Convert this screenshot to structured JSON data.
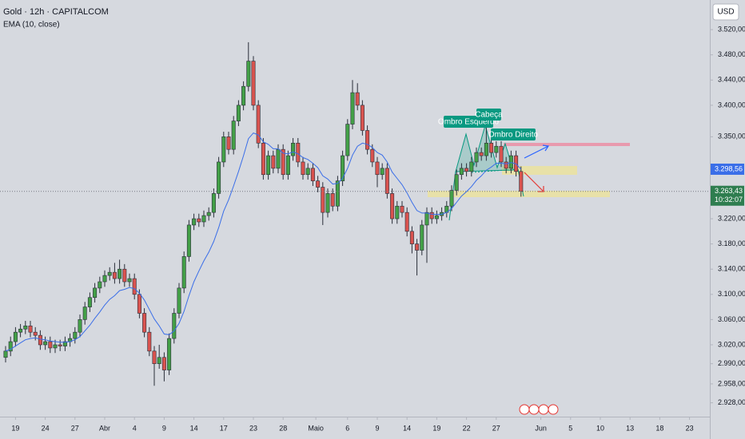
{
  "chart_data": {
    "type": "candlestick",
    "title": "Gold · 12h · CAPITALCOM",
    "currency": "USD",
    "up_color": "#43a047",
    "down_color": "#d9534f",
    "open": [
      3000,
      3010,
      3025,
      3040,
      3045,
      3050,
      3040,
      3035,
      3020,
      3025,
      3015,
      3020,
      3018,
      3025,
      3030,
      3040,
      3060,
      3080,
      3095,
      3110,
      3120,
      3130,
      3135,
      3125,
      3140,
      3120,
      3125,
      3100,
      3070,
      3040,
      3010,
      2990,
      3000,
      2980,
      3030,
      3070,
      3110,
      3160,
      3210,
      3220,
      3215,
      3225,
      3230,
      3260,
      3310,
      3350,
      3330,
      3375,
      3400,
      3430,
      3470,
      3400,
      3340,
      3290,
      3320,
      3300,
      3330,
      3290,
      3320,
      3340,
      3310,
      3290,
      3300,
      3280,
      3270,
      3230,
      3260,
      3240,
      3280,
      3320,
      3370,
      3420,
      3400,
      3360,
      3330,
      3310,
      3290,
      3300,
      3260,
      3220,
      3240,
      3230,
      3200,
      3180,
      3170,
      3210,
      3230,
      3220,
      3225,
      3230,
      3240,
      3265,
      3290,
      3300,
      3295,
      3310,
      3325,
      3320,
      3340,
      3325,
      3335,
      3310,
      3300,
      3320,
      3295
    ],
    "high": [
      3018,
      3033,
      3048,
      3053,
      3058,
      3058,
      3048,
      3043,
      3033,
      3033,
      3028,
      3028,
      3033,
      3038,
      3048,
      3068,
      3088,
      3103,
      3118,
      3128,
      3138,
      3143,
      3150,
      3155,
      3148,
      3133,
      3133,
      3108,
      3078,
      3048,
      3018,
      3020,
      3008,
      3038,
      3078,
      3118,
      3168,
      3218,
      3228,
      3228,
      3233,
      3238,
      3268,
      3318,
      3358,
      3358,
      3383,
      3408,
      3438,
      3500,
      3478,
      3408,
      3348,
      3328,
      3328,
      3338,
      3338,
      3328,
      3348,
      3348,
      3318,
      3308,
      3308,
      3288,
      3278,
      3268,
      3268,
      3288,
      3328,
      3378,
      3440,
      3435,
      3408,
      3368,
      3338,
      3318,
      3308,
      3308,
      3268,
      3248,
      3248,
      3238,
      3208,
      3188,
      3218,
      3238,
      3238,
      3233,
      3238,
      3248,
      3273,
      3298,
      3308,
      3308,
      3318,
      3333,
      3333,
      3365,
      3348,
      3343,
      3343,
      3318,
      3328,
      3328,
      3303
    ],
    "low": [
      2992,
      3002,
      3017,
      3032,
      3037,
      3032,
      3027,
      3012,
      3012,
      3007,
      3007,
      3010,
      3010,
      3017,
      3022,
      3032,
      3052,
      3072,
      3087,
      3102,
      3112,
      3122,
      3117,
      3117,
      3112,
      3112,
      3092,
      3062,
      3032,
      3002,
      2955,
      2982,
      2962,
      2972,
      3022,
      3062,
      3102,
      3152,
      3202,
      3207,
      3207,
      3217,
      3222,
      3252,
      3302,
      3322,
      3322,
      3367,
      3392,
      3422,
      3392,
      3332,
      3282,
      3282,
      3292,
      3292,
      3282,
      3282,
      3312,
      3302,
      3282,
      3282,
      3272,
      3262,
      3210,
      3222,
      3232,
      3232,
      3272,
      3312,
      3362,
      3392,
      3352,
      3322,
      3302,
      3270,
      3282,
      3252,
      3212,
      3212,
      3222,
      3192,
      3165,
      3130,
      3162,
      3150,
      3212,
      3212,
      3217,
      3222,
      3232,
      3257,
      3282,
      3287,
      3287,
      3302,
      3312,
      3312,
      3317,
      3317,
      3302,
      3292,
      3292,
      3287,
      3255
    ],
    "close": [
      3010,
      3025,
      3040,
      3045,
      3050,
      3040,
      3035,
      3020,
      3025,
      3015,
      3020,
      3018,
      3025,
      3030,
      3040,
      3060,
      3080,
      3095,
      3110,
      3120,
      3130,
      3135,
      3125,
      3140,
      3120,
      3125,
      3100,
      3070,
      3040,
      3010,
      2990,
      3000,
      2980,
      3030,
      3070,
      3110,
      3160,
      3210,
      3220,
      3215,
      3225,
      3230,
      3260,
      3310,
      3350,
      3330,
      3375,
      3400,
      3430,
      3470,
      3400,
      3340,
      3290,
      3320,
      3300,
      3330,
      3290,
      3320,
      3340,
      3310,
      3290,
      3300,
      3280,
      3270,
      3230,
      3260,
      3240,
      3280,
      3320,
      3370,
      3420,
      3400,
      3360,
      3330,
      3310,
      3290,
      3300,
      3260,
      3220,
      3240,
      3230,
      3200,
      3180,
      3170,
      3210,
      3230,
      3220,
      3225,
      3230,
      3240,
      3265,
      3290,
      3300,
      3295,
      3310,
      3325,
      3320,
      3340,
      3325,
      3335,
      3310,
      3300,
      3320,
      3295,
      3263.43
    ],
    "series": [
      {
        "name": "EMA (10, close)",
        "color": "#3a6ee8",
        "values": [
          3010,
          3013,
          3018,
          3023,
          3028,
          3030,
          3031,
          3029,
          3028,
          3026,
          3025,
          3024,
          3024,
          3025,
          3028,
          3033,
          3042,
          3051,
          3062,
          3072,
          3083,
          3092,
          3098,
          3106,
          3108,
          3111,
          3109,
          3102,
          3091,
          3076,
          3061,
          3050,
          3037,
          3036,
          3042,
          3054,
          3073,
          3098,
          3120,
          3137,
          3153,
          3167,
          3184,
          3206,
          3232,
          3250,
          3272,
          3295,
          3320,
          3347,
          3356,
          3353,
          3342,
          3338,
          3331,
          3331,
          3324,
          3323,
          3326,
          3323,
          3317,
          3314,
          3308,
          3301,
          3288,
          3283,
          3275,
          3276,
          3284,
          3300,
          3321,
          3335,
          3340,
          3338,
          3333,
          3325,
          3321,
          3310,
          3294,
          3284,
          3274,
          3261,
          3246,
          3233,
          3229,
          3229,
          3227,
          3227,
          3227,
          3230,
          3236,
          3246,
          3256,
          3263,
          3271,
          3281,
          3288,
          3297,
          3302,
          3308,
          3308,
          3307,
          3309,
          3307,
          3298.56
        ]
      }
    ],
    "price_labels": [
      {
        "value": 3298.56,
        "label": "3.298,56"
      },
      {
        "value": 3263.43,
        "label": "3.263,43"
      }
    ],
    "countdown": "10:32:07",
    "annotations": [
      "Ombro Esquerdo",
      "Cabeça",
      "Ombro Direito"
    ],
    "xlim": [
      -1.13,
      142.1
    ],
    "xticks": [
      {
        "value": 2,
        "label": "19"
      },
      {
        "value": 8,
        "label": "24"
      },
      {
        "value": 14,
        "label": "27"
      },
      {
        "value": 20,
        "label": "Abr"
      },
      {
        "value": 26,
        "label": "4"
      },
      {
        "value": 32,
        "label": "9"
      },
      {
        "value": 38,
        "label": "14"
      },
      {
        "value": 44,
        "label": "17"
      },
      {
        "value": 50,
        "label": "23"
      },
      {
        "value": 56,
        "label": "28"
      },
      {
        "value": 62.6,
        "label": "Maio"
      },
      {
        "value": 69,
        "label": "6"
      },
      {
        "value": 75,
        "label": "9"
      },
      {
        "value": 81,
        "label": "14"
      },
      {
        "value": 87,
        "label": "19"
      },
      {
        "value": 93,
        "label": "22"
      },
      {
        "value": 99,
        "label": "27"
      },
      {
        "value": 108,
        "label": "Jun"
      },
      {
        "value": 114,
        "label": "5"
      },
      {
        "value": 120,
        "label": "10"
      },
      {
        "value": 126,
        "label": "13"
      },
      {
        "value": 132,
        "label": "18"
      },
      {
        "value": 138,
        "label": "23"
      }
    ],
    "ylim": [
      2906,
      3567
    ],
    "yticks": [
      {
        "value": 3520,
        "label": "3.520,00"
      },
      {
        "value": 3480,
        "label": "3.480,00"
      },
      {
        "value": 3440,
        "label": "3.440,00"
      },
      {
        "value": 3400,
        "label": "3.400,00"
      },
      {
        "value": 3350,
        "label": "3.350,00"
      },
      {
        "value": 3220,
        "label": "3.220,00"
      },
      {
        "value": 3180,
        "label": "3.180,00"
      },
      {
        "value": 3140,
        "label": "3.140,00"
      },
      {
        "value": 3100,
        "label": "3.100,00"
      },
      {
        "value": 3060,
        "label": "3.060,00"
      },
      {
        "value": 3020,
        "label": "3.020,00"
      },
      {
        "value": 2990,
        "label": "2.990,00"
      },
      {
        "value": 2958,
        "label": "2.958,00"
      },
      {
        "value": 2928,
        "label": "2.928,00"
      }
    ]
  }
}
